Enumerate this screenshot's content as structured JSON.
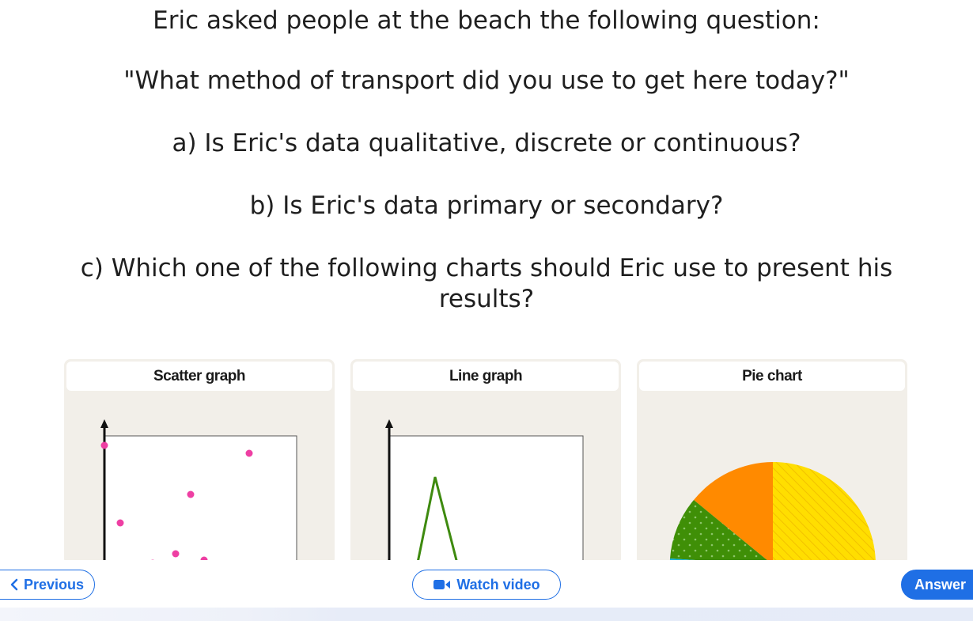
{
  "question": {
    "lines": [
      "Eric asked people at the beach the following question:",
      "\"What method of transport did you use to get here today?\"",
      "a) Is Eric's data qualitative, discrete or continuous?",
      "b) Is Eric's data primary or secondary?",
      "c) Which one of the following charts should Eric use to present his",
      "results?"
    ]
  },
  "cards": [
    {
      "title": "Scatter graph"
    },
    {
      "title": "Line graph"
    },
    {
      "title": "Pie chart"
    }
  ],
  "colors": {
    "accent": "#1f6fe5",
    "scatter_point": "#ee3fa3",
    "line": "#3e8a0f",
    "pie_yellow": "#ffde00",
    "pie_orange": "#ff8a00",
    "pie_green": "#3f8f07",
    "pie_cyan": "#1bb5d8"
  },
  "nav": {
    "previous_label": "Previous",
    "video_label": "Watch video",
    "answer_label": "Answer"
  },
  "icons": {
    "previous": "chevron-left-icon",
    "video": "video-camera-icon"
  }
}
